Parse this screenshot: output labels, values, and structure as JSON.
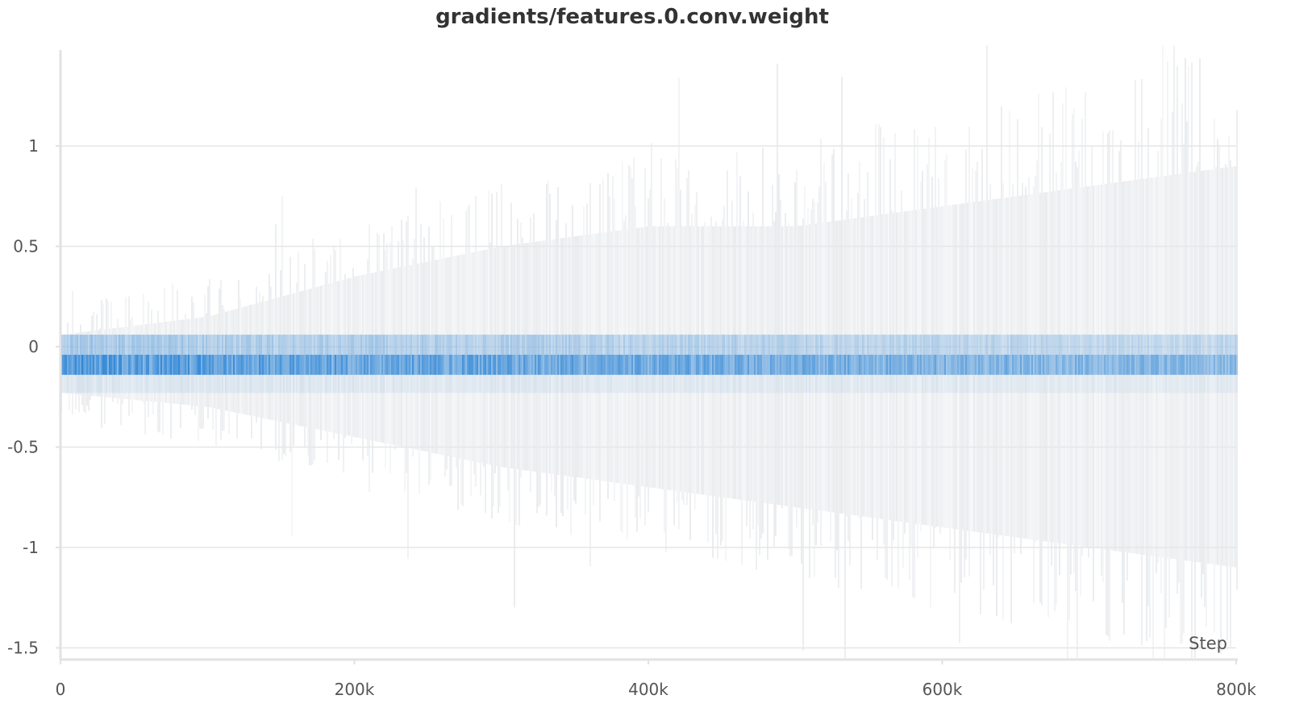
{
  "chart_data": {
    "type": "heatmap",
    "title": "gradients/features.0.conv.weight",
    "xlabel": "Step",
    "ylabel": "",
    "xlim": [
      0,
      800000
    ],
    "ylim": [
      -1.5,
      1.5
    ],
    "x_ticks": [
      {
        "value": 0,
        "label": "0"
      },
      {
        "value": 200000,
        "label": "200k"
      },
      {
        "value": 400000,
        "label": "400k"
      },
      {
        "value": 600000,
        "label": "600k"
      },
      {
        "value": 800000,
        "label": "800k"
      }
    ],
    "y_ticks": [
      {
        "value": 1,
        "label": "1"
      },
      {
        "value": 0.5,
        "label": "0.5"
      },
      {
        "value": 0,
        "label": "0"
      },
      {
        "value": -0.5,
        "label": "-0.5"
      },
      {
        "value": -1,
        "label": "-1"
      },
      {
        "value": -1.5,
        "label": "-1.5"
      }
    ],
    "grid": true,
    "colors": {
      "dense": "#2f86d6",
      "sparse": "#e4e7ea",
      "grid": "#e6e6e6",
      "axis": "#e2e2e2"
    },
    "density_bands": [
      {
        "from": -0.14,
        "to": -0.04,
        "density": 1.0
      },
      {
        "from": -0.04,
        "to": 0.06,
        "density": 0.45
      },
      {
        "from": -0.23,
        "to": -0.14,
        "density": 0.12
      }
    ],
    "spread_envelope": {
      "steps": [
        0,
        100000,
        200000,
        300000,
        400000,
        500000,
        600000,
        700000,
        800000
      ],
      "max": [
        0.06,
        0.15,
        0.35,
        0.5,
        0.6,
        0.6,
        0.7,
        0.8,
        0.9
      ],
      "min": [
        -0.23,
        -0.3,
        -0.45,
        -0.6,
        -0.7,
        -0.8,
        -0.9,
        -1.0,
        -1.1
      ]
    },
    "outlier_extremes": {
      "max": 1.5,
      "min": -1.55
    }
  }
}
